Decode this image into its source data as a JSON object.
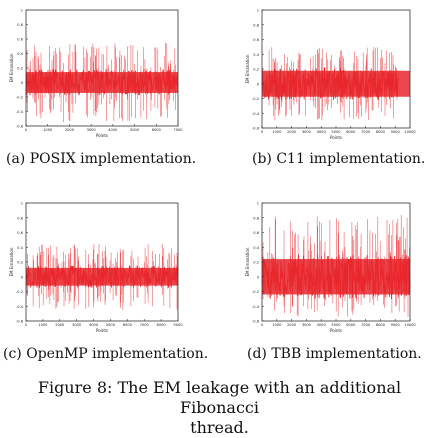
{
  "figure": {
    "caption_line1": "Figure 8: The EM leakage with an additional Fibonacci",
    "caption_line2": "thread."
  },
  "colors": {
    "signal": "#e8262b",
    "axis": "#333333"
  },
  "chart_data": [
    {
      "type": "line",
      "caption": "(a) POSIX implementation.",
      "xlabel": "Points",
      "ylabel": "EM Emanation",
      "xlim": [
        0,
        7000
      ],
      "ylim": [
        -0.6,
        1
      ],
      "xticks": [
        0,
        1000,
        2000,
        3000,
        4000,
        5000,
        6000,
        7000
      ],
      "yticks": [
        -0.6,
        -0.4,
        -0.2,
        0,
        0.2,
        0.4,
        0.6,
        0.8,
        1
      ],
      "signal": {
        "points": 7000,
        "center": 0.0,
        "core_amplitude": 0.18,
        "spike_max": 0.55,
        "spike_min": -0.55
      }
    },
    {
      "type": "line",
      "caption": "(b) C11 implementation.",
      "xlabel": "Points",
      "ylabel": "EM Emanation",
      "xlim": [
        0,
        10000
      ],
      "ylim": [
        -0.6,
        1
      ],
      "xticks": [
        0,
        1000,
        2000,
        3000,
        4000,
        5000,
        6000,
        7000,
        8000,
        9000,
        10000
      ],
      "yticks": [
        -0.6,
        -0.4,
        -0.2,
        0,
        0.2,
        0.4,
        0.6,
        0.8,
        1
      ],
      "signal": {
        "points": 9200,
        "center": 0.0,
        "core_amplitude": 0.22,
        "spike_max": 0.5,
        "spike_min": -0.5
      }
    },
    {
      "type": "line",
      "caption": "(c) OpenMP implementation.",
      "xlabel": "Points",
      "ylabel": "EM Emanation",
      "xlim": [
        0,
        9000
      ],
      "ylim": [
        -0.6,
        1
      ],
      "xticks": [
        0,
        1000,
        2000,
        3000,
        4000,
        5000,
        6000,
        7000,
        8000,
        9000
      ],
      "yticks": [
        -0.6,
        -0.4,
        -0.2,
        0,
        0.2,
        0.4,
        0.6,
        0.8,
        1
      ],
      "signal": {
        "points": 9000,
        "center": 0.0,
        "core_amplitude": 0.15,
        "spike_max": 0.45,
        "spike_min": -0.45
      }
    },
    {
      "type": "line",
      "caption": "(d) TBB implementation.",
      "xlabel": "Points",
      "ylabel": "EM Emanation",
      "xlim": [
        0,
        10000
      ],
      "ylim": [
        -0.6,
        1
      ],
      "xticks": [
        0,
        1000,
        2000,
        3000,
        4000,
        5000,
        6000,
        7000,
        8000,
        9000,
        10000
      ],
      "yticks": [
        -0.6,
        -0.4,
        -0.2,
        0,
        0.2,
        0.4,
        0.6,
        0.8,
        1
      ],
      "signal": {
        "points": 10000,
        "center": 0.0,
        "core_amplitude": 0.3,
        "spike_max": 0.85,
        "spike_min": -0.55
      }
    }
  ]
}
